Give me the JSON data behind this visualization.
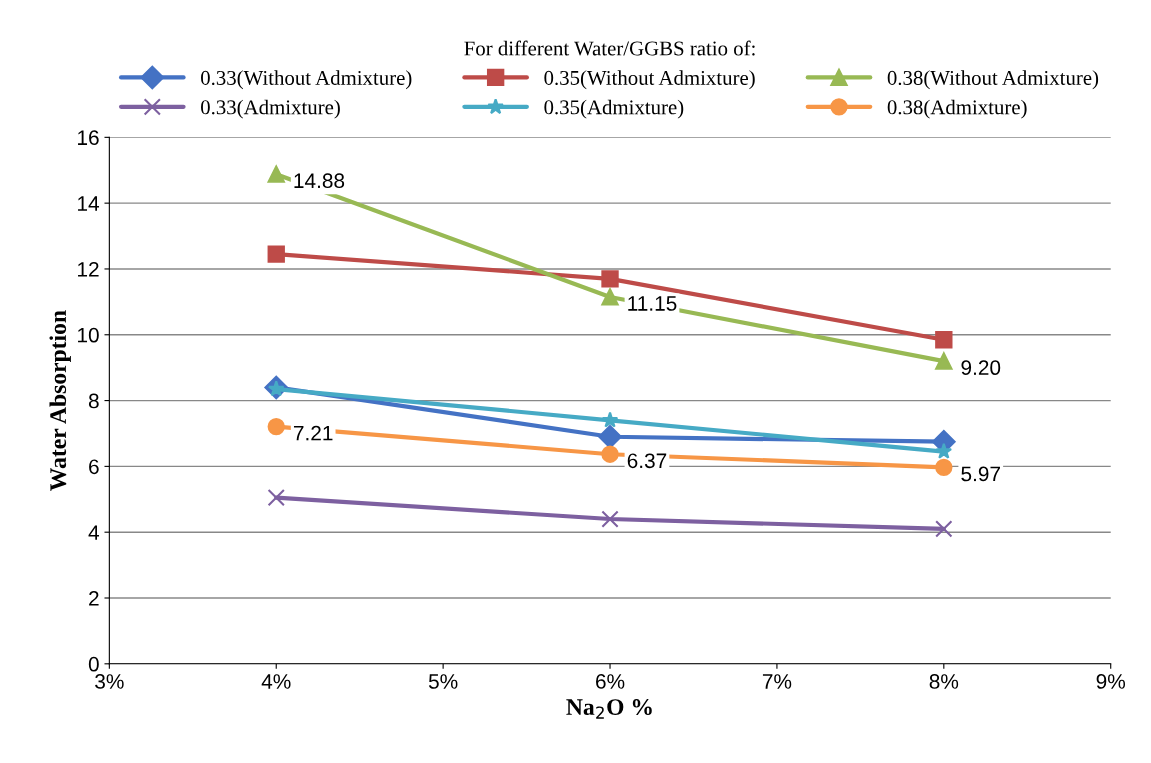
{
  "chart_data": {
    "type": "line",
    "xlabel": "Na$_{2}$O %",
    "ylabel": "Water Absorption",
    "legend_title": "For different Water/GGBS ratio of:",
    "x": [
      4,
      6,
      8
    ],
    "series": [
      {
        "name": "0.33(Without Admixture)",
        "color": "#4472c4",
        "marker": "diamond",
        "values": [
          8.4,
          6.9,
          6.75
        ]
      },
      {
        "name": "0.35(Without Admixture)",
        "color": "#be4b48",
        "marker": "square",
        "values": [
          12.45,
          11.7,
          9.85
        ]
      },
      {
        "name": "0.38(Without Admixture)",
        "color": "#98b954",
        "marker": "triangle",
        "values": [
          14.88,
          11.15,
          9.2
        ],
        "value_labels": [
          "14.88",
          "11.15",
          "9.20"
        ]
      },
      {
        "name": "0.33(Admixture)",
        "color": "#7d60a0",
        "marker": "cross",
        "values": [
          5.05,
          4.4,
          4.1
        ]
      },
      {
        "name": "0.35(Admixture)",
        "color": "#46aac5",
        "marker": "star",
        "values": [
          8.35,
          7.4,
          6.45
        ]
      },
      {
        "name": "0.38(Admixture)",
        "color": "#f79646",
        "marker": "circle",
        "values": [
          7.21,
          6.37,
          5.97
        ],
        "value_labels": [
          "7.21",
          "6.37",
          "5.97"
        ]
      }
    ],
    "xlim": [
      3,
      9
    ],
    "xticks": [
      {
        "value": 3,
        "label": "3%"
      },
      {
        "value": 4,
        "label": "4%"
      },
      {
        "value": 5,
        "label": "5%"
      },
      {
        "value": 6,
        "label": "6%"
      },
      {
        "value": 7,
        "label": "7%"
      },
      {
        "value": 8,
        "label": "8%"
      },
      {
        "value": 9,
        "label": "9%"
      }
    ],
    "ylim": [
      0,
      16
    ],
    "yticks": [
      0,
      2,
      4,
      6,
      8,
      10,
      12,
      14,
      16
    ],
    "grid": "y",
    "legend": "top",
    "line_style": "solid"
  }
}
